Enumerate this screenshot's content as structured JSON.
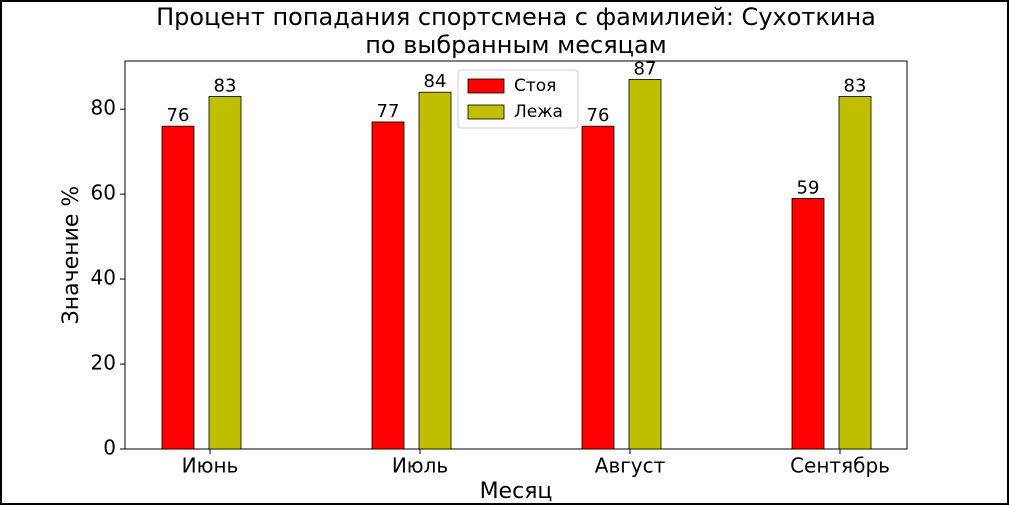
{
  "chart_data": {
    "type": "bar",
    "title": [
      "Процент попадания спортсмена с фамилией: Сухоткина",
      "по выбранным месяцам"
    ],
    "x_label": "Месяц",
    "y_label": "Значение %",
    "categories": [
      "Июнь",
      "Июль",
      "Август",
      "Сентябрь"
    ],
    "series": [
      {
        "name": "Стоя",
        "color": "#ff0000",
        "values": [
          76,
          77,
          76,
          59
        ]
      },
      {
        "name": "Лежа",
        "color": "#bfbf00",
        "values": [
          83,
          84,
          87,
          83
        ]
      }
    ],
    "ylim": [
      0,
      91.35
    ],
    "yticks": [
      0,
      20,
      40,
      60,
      80
    ],
    "legend": "upper center"
  }
}
